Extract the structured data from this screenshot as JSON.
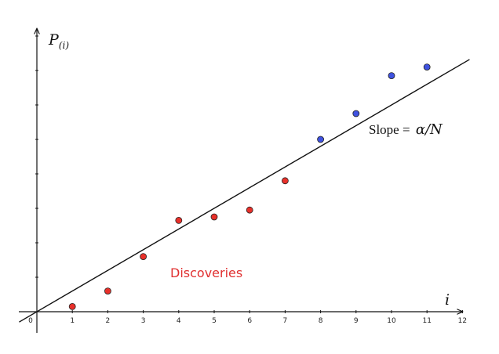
{
  "chart_data": {
    "type": "scatter",
    "x_tick_labels": [
      "0",
      "1",
      "2",
      "3",
      "4",
      "5",
      "6",
      "7",
      "8",
      "9",
      "10",
      "11",
      "12"
    ],
    "xlim": [
      0,
      12
    ],
    "ylim": [
      0,
      8
    ],
    "ylabel": "P",
    "ylabel_subscript": "(i)",
    "xlabel": "i",
    "grid": false,
    "points": [
      {
        "x": 1,
        "y": 0.15,
        "group": "red"
      },
      {
        "x": 2,
        "y": 0.6,
        "group": "red"
      },
      {
        "x": 3,
        "y": 1.6,
        "group": "red"
      },
      {
        "x": 4,
        "y": 2.65,
        "group": "red"
      },
      {
        "x": 5,
        "y": 2.75,
        "group": "red"
      },
      {
        "x": 6,
        "y": 2.95,
        "group": "red"
      },
      {
        "x": 7,
        "y": 3.8,
        "group": "red"
      },
      {
        "x": 8,
        "y": 5.0,
        "group": "blue"
      },
      {
        "x": 9,
        "y": 5.75,
        "group": "blue"
      },
      {
        "x": 10,
        "y": 6.85,
        "group": "blue"
      },
      {
        "x": 11,
        "y": 7.1,
        "group": "blue"
      }
    ],
    "line": {
      "intercept": 0,
      "slope": 0.6,
      "x_range": [
        -0.5,
        12.2
      ]
    },
    "annotations": {
      "slope_label_prefix": "Slope = ",
      "slope_label_math": "α/N",
      "discoveries": "Discoveries"
    },
    "colors": {
      "red": "#e8302a",
      "blue": "#3f52e0",
      "axis": "#111111",
      "line": "#111111",
      "discoveries_text": "#e03030"
    }
  }
}
